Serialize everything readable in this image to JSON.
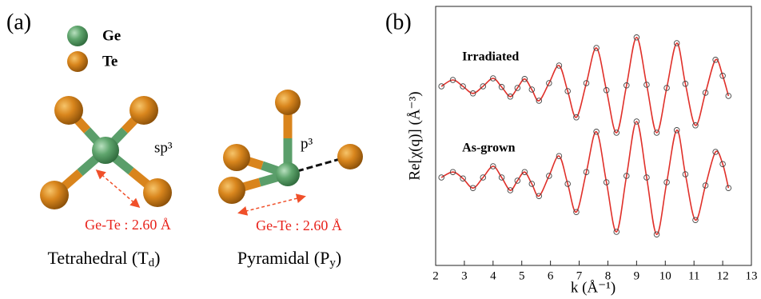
{
  "panel_a": {
    "label": "(a)",
    "legend": [
      "Ge",
      "Te"
    ],
    "tetrahedral": {
      "hybrid": "sp³",
      "bond": "Ge-Te : 2.60 Å",
      "name": {
        "text": "Tetrahedral (T",
        "sub": "d",
        "close": ")"
      }
    },
    "pyramidal": {
      "hybrid": "p³",
      "bond": "Ge-Te : 2.60 Å",
      "name": {
        "text": "Pyramidal (P",
        "sub": "y",
        "close": ")"
      }
    }
  },
  "chart_data": {
    "type": "line",
    "panel_label": "(b)",
    "xlabel": "k (Å⁻¹)",
    "ylabel": "Re[χ(q)] (Å⁻³)",
    "x": [
      2.2,
      2.6,
      2.95,
      3.3,
      3.65,
      4.0,
      4.3,
      4.6,
      4.85,
      5.1,
      5.35,
      5.6,
      5.95,
      6.3,
      6.6,
      6.9,
      7.25,
      7.6,
      7.95,
      8.3,
      8.65,
      9.0,
      9.35,
      9.7,
      10.05,
      10.4,
      10.7,
      11.05,
      11.4,
      11.75,
      12.0,
      12.2
    ],
    "xlim": [
      2,
      13
    ],
    "xticks": [
      2,
      3,
      4,
      5,
      6,
      7,
      8,
      9,
      10,
      11,
      12,
      13
    ],
    "ylim": [
      -4,
      4
    ],
    "series": [
      {
        "name": "Irradiated",
        "color": "#e0302a",
        "marker_color": "#444444",
        "values": [
          1.55,
          1.75,
          1.55,
          1.33,
          1.55,
          1.8,
          1.53,
          1.23,
          1.5,
          1.78,
          1.45,
          1.1,
          1.65,
          2.2,
          1.4,
          0.58,
          1.65,
          2.75,
          1.43,
          0.1,
          1.58,
          3.08,
          1.6,
          0.1,
          1.5,
          2.9,
          1.63,
          0.33,
          1.35,
          2.38,
          1.88,
          1.25
        ]
      },
      {
        "name": "As-grown",
        "color": "#e0302a",
        "marker_color": "#444444",
        "values": [
          -1.3,
          -1.13,
          -1.33,
          -1.63,
          -1.3,
          -0.95,
          -1.3,
          -1.7,
          -1.4,
          -1.13,
          -1.5,
          -1.88,
          -1.25,
          -0.63,
          -1.5,
          -2.38,
          -1.13,
          0.13,
          -1.45,
          -3.0,
          -1.25,
          0.45,
          -1.3,
          -3.08,
          -1.45,
          0.18,
          -1.2,
          -2.63,
          -1.55,
          -0.5,
          -0.88,
          -1.63
        ]
      }
    ]
  }
}
